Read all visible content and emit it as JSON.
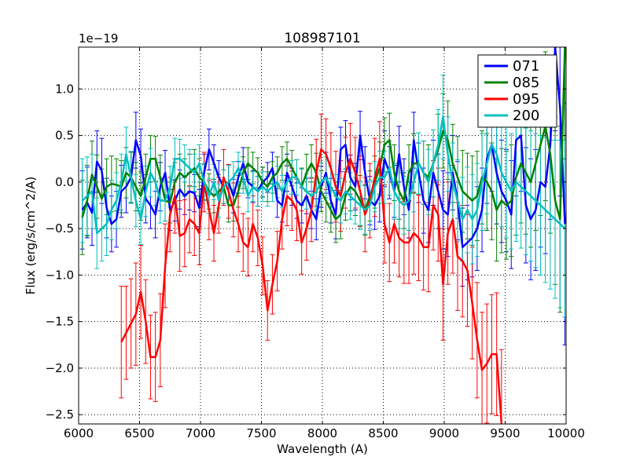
{
  "chart_data": {
    "type": "line",
    "title": "108987101",
    "xlabel": "Wavelength (A)",
    "ylabel": "Flux (erg/s/cm^2/A)",
    "y_offset_label": "1e−19",
    "xlim": [
      6000,
      10000
    ],
    "ylim": [
      -2.6,
      1.45
    ],
    "grid": true,
    "legend_position": "top-right",
    "xticks": [
      6000,
      6500,
      7000,
      7500,
      8000,
      8500,
      9000,
      9500,
      10000
    ],
    "xtick_labels": [
      "6000",
      "6500",
      "7000",
      "7500",
      "8000",
      "8500",
      "9000",
      "9500",
      "10000"
    ],
    "yticks": [
      1.0,
      0.5,
      0.0,
      -0.5,
      -1.0,
      -1.5,
      -2.0,
      -2.5
    ],
    "ytick_labels": [
      "1.0",
      "0.5",
      "0.0",
      "−0.5",
      "−1.0",
      "−1.5",
      "−2.0",
      "−2.5"
    ],
    "series": [
      {
        "name": "071",
        "color": "#0000ff",
        "x": [
          6030,
          6070,
          6110,
          6150,
          6190,
          6230,
          6270,
          6310,
          6350,
          6390,
          6430,
          6470,
          6510,
          6550,
          6590,
          6630,
          6670,
          6710,
          6750,
          6790,
          6830,
          6870,
          6910,
          6950,
          6990,
          7030,
          7070,
          7110,
          7150,
          7190,
          7230,
          7270,
          7310,
          7350,
          7390,
          7430,
          7470,
          7510,
          7550,
          7590,
          7630,
          7670,
          7710,
          7750,
          7790,
          7830,
          7870,
          7910,
          7950,
          7990,
          8030,
          8070,
          8110,
          8150,
          8190,
          8230,
          8270,
          8310,
          8350,
          8390,
          8430,
          8470,
          8510,
          8550,
          8590,
          8630,
          8670,
          8710,
          8750,
          8790,
          8830,
          8870,
          8910,
          8950,
          8990,
          9030,
          9070,
          9110,
          9150,
          9190,
          9230,
          9270,
          9310,
          9350,
          9390,
          9430,
          9470,
          9510,
          9550,
          9590,
          9630,
          9670,
          9710,
          9750,
          9790,
          9830,
          9870,
          9910,
          9950,
          9990
        ],
        "y": [
          -0.3,
          -0.22,
          -0.33,
          0.22,
          0.12,
          -0.28,
          -0.45,
          -0.4,
          -0.1,
          -0.05,
          0.05,
          0.45,
          0.28,
          -0.18,
          -0.25,
          -0.35,
          -0.05,
          0.1,
          -0.3,
          -0.2,
          -0.08,
          -0.15,
          -0.1,
          -0.12,
          -0.28,
          0.1,
          0.35,
          0.2,
          0.05,
          -0.05,
          0.0,
          -0.15,
          0.05,
          0.2,
          0.0,
          -0.05,
          -0.1,
          0.0,
          0.05,
          0.15,
          -0.2,
          -0.25,
          0.1,
          -0.05,
          -0.2,
          -0.25,
          -0.15,
          -0.3,
          -0.4,
          -0.05,
          0.1,
          -0.2,
          -0.35,
          0.35,
          0.4,
          0.05,
          -0.05,
          0.5,
          0.1,
          -0.2,
          -0.25,
          -0.15,
          0.25,
          0.1,
          -0.1,
          0.3,
          -0.05,
          -0.3,
          0.45,
          0.1,
          -0.2,
          -0.3,
          0.1,
          -0.1,
          -0.3,
          -0.35,
          0.1,
          -0.2,
          -0.7,
          -0.65,
          -0.6,
          -0.5,
          -0.3,
          0.25,
          0.4,
          0.1,
          -0.1,
          -0.2,
          -0.35,
          0.45,
          0.5,
          -0.25,
          -0.4,
          -0.3,
          0.0,
          -0.05,
          0.4,
          1.45,
          0.8,
          -0.45
        ],
        "err": [
          0.42,
          0.38,
          0.35,
          0.33,
          0.35,
          0.32,
          0.3,
          0.3,
          0.28,
          0.28,
          0.27,
          0.3,
          0.29,
          0.26,
          0.25,
          0.25,
          0.26,
          0.24,
          0.22,
          0.22,
          0.21,
          0.2,
          0.2,
          0.2,
          0.2,
          0.2,
          0.22,
          0.2,
          0.18,
          0.18,
          0.18,
          0.18,
          0.17,
          0.17,
          0.17,
          0.17,
          0.16,
          0.16,
          0.16,
          0.17,
          0.18,
          0.18,
          0.2,
          0.2,
          0.19,
          0.19,
          0.19,
          0.2,
          0.22,
          0.22,
          0.22,
          0.24,
          0.26,
          0.24,
          0.26,
          0.24,
          0.25,
          0.26,
          0.28,
          0.26,
          0.26,
          0.28,
          0.3,
          0.28,
          0.28,
          0.3,
          0.3,
          0.3,
          0.3,
          0.32,
          0.35,
          0.35,
          0.35,
          0.4,
          0.42,
          0.45,
          0.4,
          0.42,
          0.42,
          0.4,
          0.42,
          0.45,
          0.45,
          0.48,
          0.5,
          0.55,
          0.55,
          0.55,
          0.58,
          0.6,
          0.6,
          0.62,
          0.65,
          0.65,
          0.7,
          0.72,
          0.8,
          0.9,
          0.95,
          1.3
        ]
      },
      {
        "name": "085",
        "color": "#008000",
        "x": [
          6030,
          6070,
          6110,
          6150,
          6190,
          6230,
          6270,
          6310,
          6350,
          6390,
          6430,
          6470,
          6510,
          6550,
          6590,
          6630,
          6670,
          6710,
          6750,
          6790,
          6830,
          6870,
          6910,
          6950,
          6990,
          7030,
          7070,
          7110,
          7150,
          7190,
          7230,
          7270,
          7310,
          7350,
          7390,
          7430,
          7470,
          7510,
          7550,
          7590,
          7630,
          7670,
          7710,
          7750,
          7790,
          7830,
          7870,
          7910,
          7950,
          7990,
          8030,
          8070,
          8110,
          8150,
          8190,
          8230,
          8270,
          8310,
          8350,
          8390,
          8430,
          8470,
          8510,
          8550,
          8590,
          8630,
          8670,
          8710,
          8750,
          8790,
          8830,
          8870,
          8910,
          8950,
          8990,
          9030,
          9070,
          9110,
          9150,
          9190,
          9230,
          9270,
          9310,
          9350,
          9390,
          9430,
          9470,
          9510,
          9550,
          9590,
          9630,
          9670,
          9710,
          9750,
          9790,
          9830,
          9870,
          9910,
          9950,
          9990
        ],
        "y": [
          -0.38,
          -0.2,
          0.08,
          -0.05,
          -0.18,
          -0.05,
          -0.02,
          -0.03,
          -0.05,
          0.1,
          0.05,
          -0.05,
          -0.15,
          0.05,
          0.25,
          0.25,
          0.05,
          -0.2,
          -0.22,
          0.0,
          0.1,
          0.05,
          0.1,
          0.15,
          0.05,
          0.0,
          -0.1,
          -0.15,
          -0.1,
          -0.05,
          -0.25,
          -0.25,
          -0.1,
          0.1,
          0.2,
          0.15,
          0.1,
          0.0,
          -0.05,
          0.05,
          0.1,
          0.2,
          0.25,
          0.15,
          0.05,
          -0.05,
          0.1,
          0.2,
          0.1,
          -0.1,
          -0.2,
          -0.3,
          -0.4,
          -0.35,
          -0.15,
          -0.05,
          -0.1,
          -0.2,
          -0.3,
          -0.15,
          0.0,
          0.15,
          0.4,
          0.45,
          0.1,
          -0.1,
          -0.2,
          0.1,
          0.2,
          0.2,
          0.1,
          0.05,
          0.2,
          0.35,
          0.55,
          0.45,
          0.2,
          0.05,
          -0.1,
          -0.15,
          -0.2,
          -0.15,
          0.05,
          0.0,
          -0.1,
          -0.3,
          -0.2,
          -0.25,
          -0.2,
          0.05,
          0.2,
          0.1,
          0.0,
          0.2,
          0.4,
          0.6,
          0.3,
          -0.2,
          -0.4,
          1.45
        ],
        "err": [
          0.4,
          0.38,
          0.36,
          0.34,
          0.32,
          0.3,
          0.3,
          0.28,
          0.28,
          0.27,
          0.27,
          0.26,
          0.26,
          0.25,
          0.25,
          0.24,
          0.24,
          0.22,
          0.22,
          0.21,
          0.2,
          0.2,
          0.2,
          0.2,
          0.2,
          0.19,
          0.19,
          0.18,
          0.18,
          0.18,
          0.18,
          0.17,
          0.17,
          0.17,
          0.17,
          0.17,
          0.16,
          0.16,
          0.16,
          0.17,
          0.17,
          0.18,
          0.18,
          0.19,
          0.19,
          0.2,
          0.2,
          0.2,
          0.21,
          0.22,
          0.23,
          0.24,
          0.25,
          0.26,
          0.26,
          0.26,
          0.26,
          0.27,
          0.27,
          0.27,
          0.28,
          0.28,
          0.29,
          0.29,
          0.3,
          0.3,
          0.3,
          0.3,
          0.32,
          0.33,
          0.34,
          0.35,
          0.36,
          0.38,
          0.4,
          0.42,
          0.42,
          0.44,
          0.44,
          0.46,
          0.48,
          0.48,
          0.5,
          0.52,
          0.52,
          0.55,
          0.56,
          0.58,
          0.6,
          0.62,
          0.64,
          0.66,
          0.7,
          0.72,
          0.76,
          0.8,
          0.85,
          0.9,
          1.0,
          1.2
        ]
      },
      {
        "name": "095",
        "color": "#ff0000",
        "x": [
          6350,
          6390,
          6430,
          6470,
          6510,
          6550,
          6590,
          6630,
          6670,
          6710,
          6750,
          6790,
          6830,
          6870,
          6910,
          6950,
          6990,
          7030,
          7070,
          7110,
          7150,
          7190,
          7230,
          7270,
          7310,
          7350,
          7390,
          7430,
          7470,
          7510,
          7550,
          7590,
          7630,
          7670,
          7710,
          7750,
          7790,
          7830,
          7870,
          7910,
          7950,
          7990,
          8030,
          8070,
          8110,
          8150,
          8190,
          8230,
          8270,
          8310,
          8350,
          8390,
          8430,
          8470,
          8510,
          8550,
          8590,
          8630,
          8670,
          8710,
          8750,
          8790,
          8830,
          8870,
          8910,
          8950,
          8990,
          9030,
          9070,
          9110,
          9150,
          9190,
          9230,
          9270,
          9310,
          9350,
          9390,
          9430,
          9470
        ],
        "y": [
          -1.72,
          -1.62,
          -1.52,
          -1.42,
          -1.18,
          -1.5,
          -1.88,
          -1.88,
          -1.7,
          -0.9,
          -0.35,
          -0.15,
          -0.58,
          -0.55,
          -0.4,
          -0.45,
          -0.55,
          0.0,
          -0.3,
          -0.55,
          -0.25,
          0.05,
          -0.1,
          -0.3,
          -0.45,
          -0.65,
          -0.7,
          -0.45,
          -0.6,
          -0.9,
          -1.38,
          -1.1,
          -0.85,
          -0.4,
          -0.15,
          -0.2,
          -0.3,
          -0.65,
          -0.5,
          -0.3,
          0.1,
          0.35,
          0.3,
          0.15,
          -0.05,
          -0.15,
          0.1,
          0.25,
          0.1,
          -0.1,
          -0.35,
          -0.2,
          0.05,
          0.25,
          -0.45,
          -0.65,
          -0.45,
          -0.6,
          -0.65,
          -0.65,
          -0.55,
          -0.6,
          -0.7,
          -0.7,
          -0.25,
          -0.35,
          -1.1,
          -0.55,
          -0.4,
          -0.8,
          -0.85,
          -0.95,
          -1.3,
          -1.7,
          -2.02,
          -1.95,
          -1.85,
          -1.85,
          -2.6
        ],
        "err": [
          0.6,
          0.5,
          0.48,
          0.55,
          0.5,
          0.45,
          0.45,
          0.48,
          0.5,
          0.45,
          0.4,
          0.4,
          0.38,
          0.36,
          0.36,
          0.34,
          0.34,
          0.32,
          0.32,
          0.3,
          0.3,
          0.3,
          0.29,
          0.29,
          0.3,
          0.31,
          0.31,
          0.3,
          0.3,
          0.31,
          0.32,
          0.32,
          0.32,
          0.32,
          0.32,
          0.32,
          0.33,
          0.34,
          0.34,
          0.34,
          0.36,
          0.38,
          0.38,
          0.38,
          0.38,
          0.38,
          0.38,
          0.38,
          0.38,
          0.38,
          0.4,
          0.4,
          0.42,
          0.4,
          0.42,
          0.42,
          0.42,
          0.42,
          0.44,
          0.44,
          0.44,
          0.46,
          0.46,
          0.48,
          0.48,
          0.5,
          0.6,
          0.55,
          0.58,
          0.58,
          0.6,
          0.6,
          0.6,
          0.62,
          0.62,
          0.64,
          0.64,
          0.66,
          0.8
        ]
      },
      {
        "name": "200",
        "color": "#00bfbf",
        "x": [
          6030,
          6070,
          6110,
          6150,
          6190,
          6230,
          6270,
          6310,
          6350,
          6390,
          6430,
          6470,
          6510,
          6550,
          6590,
          6630,
          6670,
          6710,
          6750,
          6790,
          6830,
          6870,
          6910,
          6950,
          6990,
          7030,
          7070,
          7110,
          7150,
          7190,
          7230,
          7270,
          7310,
          7350,
          7390,
          7430,
          7470,
          7510,
          7550,
          7590,
          7630,
          7670,
          7710,
          7750,
          7790,
          7830,
          7870,
          7910,
          7950,
          7990,
          8030,
          8070,
          8110,
          8150,
          8190,
          8230,
          8270,
          8310,
          8350,
          8390,
          8430,
          8470,
          8510,
          8550,
          8590,
          8630,
          8670,
          8710,
          8750,
          8790,
          8830,
          8870,
          8910,
          8950,
          8990,
          9030,
          9070,
          9110,
          9150,
          9190,
          9230,
          9270,
          9310,
          9350,
          9390,
          9430,
          9470,
          9510,
          9550,
          9590,
          9630,
          9670,
          9710,
          9750,
          9790,
          9830,
          9870,
          9910,
          9950,
          9990
        ],
        "y": [
          -0.2,
          -0.15,
          -0.1,
          -0.55,
          -0.5,
          -0.45,
          -0.3,
          -0.2,
          0.0,
          0.3,
          0.05,
          -0.2,
          -0.4,
          -0.1,
          0.1,
          0.0,
          -0.2,
          -0.2,
          -0.05,
          0.25,
          0.25,
          0.2,
          0.15,
          0.1,
          0.2,
          0.0,
          -0.15,
          0.0,
          -0.2,
          -0.05,
          0.0,
          0.05,
          0.15,
          0.05,
          -0.15,
          -0.05,
          -0.1,
          -0.05,
          -0.1,
          -0.05,
          0.0,
          -0.1,
          0.0,
          0.05,
          0.05,
          -0.05,
          -0.1,
          -0.15,
          -0.1,
          0.0,
          0.05,
          -0.05,
          -0.15,
          -0.2,
          -0.1,
          -0.15,
          -0.2,
          -0.25,
          -0.3,
          -0.25,
          -0.05,
          0.05,
          0.05,
          0.15,
          -0.1,
          -0.2,
          -0.25,
          -0.2,
          0.0,
          0.2,
          0.1,
          0.0,
          0.2,
          0.4,
          0.7,
          0.3,
          0.0,
          -0.2,
          -0.4,
          -0.3,
          -0.4,
          -0.3,
          0.0,
          0.2,
          0.4,
          0.3,
          0.1,
          0.0,
          -0.1,
          0.0,
          -0.05,
          -0.1,
          -0.15,
          -0.2,
          -0.25,
          -0.3,
          -0.35,
          -0.4,
          -0.45,
          -0.5
        ],
        "err": [
          0.45,
          0.42,
          0.4,
          0.38,
          0.35,
          0.34,
          0.32,
          0.3,
          0.3,
          0.29,
          0.28,
          0.28,
          0.27,
          0.27,
          0.26,
          0.25,
          0.24,
          0.22,
          0.22,
          0.22,
          0.21,
          0.2,
          0.2,
          0.2,
          0.2,
          0.2,
          0.19,
          0.19,
          0.18,
          0.18,
          0.18,
          0.17,
          0.17,
          0.17,
          0.17,
          0.16,
          0.16,
          0.16,
          0.16,
          0.16,
          0.17,
          0.17,
          0.18,
          0.18,
          0.19,
          0.19,
          0.19,
          0.2,
          0.2,
          0.21,
          0.22,
          0.22,
          0.23,
          0.24,
          0.24,
          0.25,
          0.25,
          0.26,
          0.26,
          0.27,
          0.27,
          0.28,
          0.28,
          0.29,
          0.3,
          0.3,
          0.31,
          0.32,
          0.32,
          0.33,
          0.34,
          0.35,
          0.36,
          0.38,
          0.45,
          0.4,
          0.42,
          0.44,
          0.45,
          0.46,
          0.48,
          0.5,
          0.52,
          0.54,
          0.55,
          0.56,
          0.58,
          0.6,
          0.62,
          0.64,
          0.66,
          0.68,
          0.7,
          0.72,
          0.75,
          0.78,
          0.8,
          0.85,
          0.9,
          0.95
        ]
      }
    ]
  }
}
